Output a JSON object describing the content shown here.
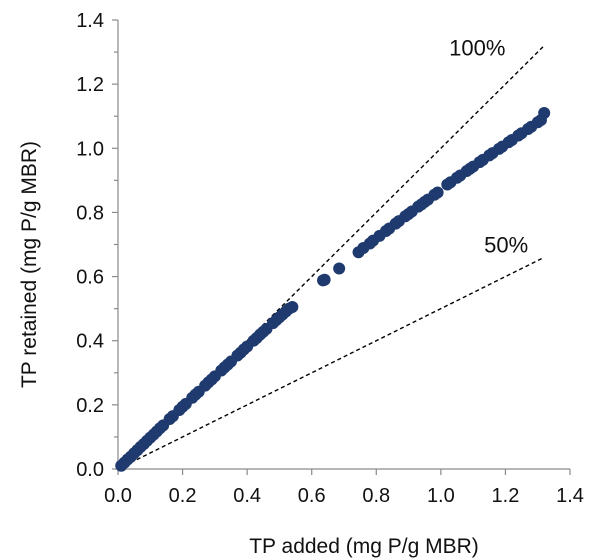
{
  "chart_data": {
    "type": "scatter",
    "title": "",
    "xlabel": "TP added (mg P/g MBR)",
    "ylabel": "TP retained (mg P/g MBR)",
    "xlim": [
      0,
      1.4
    ],
    "ylim": [
      0,
      1.4
    ],
    "xticks": [
      "0.0",
      "0.2",
      "0.4",
      "0.6",
      "0.8",
      "1.0",
      "1.2",
      "1.4"
    ],
    "yticks": [
      "0.0",
      "0.2",
      "0.4",
      "0.6",
      "0.8",
      "1.0",
      "1.2",
      "1.4"
    ],
    "grid": false,
    "marker_color": "#1f3a6e",
    "reference_lines": [
      {
        "label": "100%",
        "slope": 1.0,
        "x_end": 1.32
      },
      {
        "label": "50%",
        "slope": 0.5,
        "x_end": 1.32
      }
    ],
    "points": [
      [
        0.01,
        0.01
      ],
      [
        0.02,
        0.02
      ],
      [
        0.03,
        0.03
      ],
      [
        0.04,
        0.039
      ],
      [
        0.05,
        0.049
      ],
      [
        0.06,
        0.059
      ],
      [
        0.07,
        0.069
      ],
      [
        0.08,
        0.078
      ],
      [
        0.09,
        0.088
      ],
      [
        0.1,
        0.098
      ],
      [
        0.11,
        0.107
      ],
      [
        0.12,
        0.117
      ],
      [
        0.13,
        0.127
      ],
      [
        0.14,
        0.136
      ],
      [
        0.16,
        0.156
      ],
      [
        0.17,
        0.165
      ],
      [
        0.19,
        0.184
      ],
      [
        0.2,
        0.194
      ],
      [
        0.21,
        0.203
      ],
      [
        0.23,
        0.222
      ],
      [
        0.24,
        0.232
      ],
      [
        0.25,
        0.241
      ],
      [
        0.27,
        0.26
      ],
      [
        0.28,
        0.27
      ],
      [
        0.29,
        0.279
      ],
      [
        0.3,
        0.289
      ],
      [
        0.32,
        0.307
      ],
      [
        0.33,
        0.317
      ],
      [
        0.34,
        0.326
      ],
      [
        0.35,
        0.335
      ],
      [
        0.37,
        0.354
      ],
      [
        0.38,
        0.363
      ],
      [
        0.39,
        0.373
      ],
      [
        0.4,
        0.382
      ],
      [
        0.42,
        0.4
      ],
      [
        0.43,
        0.409
      ],
      [
        0.44,
        0.419
      ],
      [
        0.45,
        0.428
      ],
      [
        0.46,
        0.437
      ],
      [
        0.48,
        0.455
      ],
      [
        0.49,
        0.464
      ],
      [
        0.5,
        0.473
      ],
      [
        0.51,
        0.482
      ],
      [
        0.52,
        0.491
      ],
      [
        0.53,
        0.5
      ],
      [
        0.54,
        0.505
      ],
      [
        0.635,
        0.588
      ],
      [
        0.64,
        0.59
      ],
      [
        0.685,
        0.625
      ],
      [
        0.745,
        0.676
      ],
      [
        0.76,
        0.689
      ],
      [
        0.78,
        0.703
      ],
      [
        0.79,
        0.712
      ],
      [
        0.81,
        0.727
      ],
      [
        0.83,
        0.742
      ],
      [
        0.84,
        0.75
      ],
      [
        0.86,
        0.765
      ],
      [
        0.87,
        0.773
      ],
      [
        0.89,
        0.788
      ],
      [
        0.9,
        0.795
      ],
      [
        0.91,
        0.803
      ],
      [
        0.93,
        0.818
      ],
      [
        0.94,
        0.825
      ],
      [
        0.95,
        0.833
      ],
      [
        0.96,
        0.84
      ],
      [
        0.98,
        0.855
      ],
      [
        0.99,
        0.862
      ],
      [
        1.02,
        0.887
      ],
      [
        1.03,
        0.894
      ],
      [
        1.05,
        0.908
      ],
      [
        1.06,
        0.915
      ],
      [
        1.08,
        0.929
      ],
      [
        1.09,
        0.936
      ],
      [
        1.1,
        0.943
      ],
      [
        1.12,
        0.957
      ],
      [
        1.13,
        0.964
      ],
      [
        1.15,
        0.978
      ],
      [
        1.16,
        0.985
      ],
      [
        1.18,
        0.998
      ],
      [
        1.19,
        1.005
      ],
      [
        1.21,
        1.019
      ],
      [
        1.22,
        1.026
      ],
      [
        1.24,
        1.04
      ],
      [
        1.25,
        1.047
      ],
      [
        1.27,
        1.06
      ],
      [
        1.28,
        1.067
      ],
      [
        1.3,
        1.081
      ],
      [
        1.31,
        1.088
      ],
      [
        1.32,
        1.11
      ]
    ]
  }
}
